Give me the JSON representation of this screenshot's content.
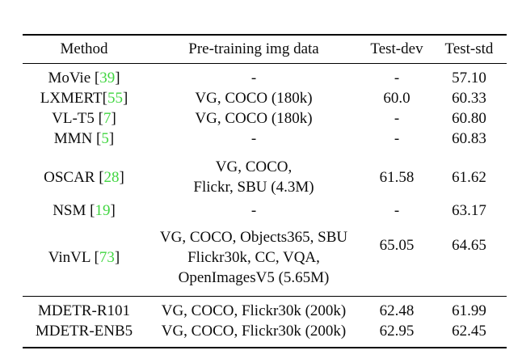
{
  "figure": {
    "background": "#ffffff",
    "text_color": "#0d0d0d",
    "rule_color": "#000000",
    "citation_color": "#41d641"
  },
  "table": {
    "columns": [
      "Method",
      "Pre-training img data",
      "Test-dev",
      "Test-std"
    ],
    "citation_open": "[",
    "citation_close": "]",
    "groups": [
      {
        "rows": [
          {
            "method": {
              "name": "MoVie ",
              "cite": "39"
            },
            "pretraining": [
              "-"
            ],
            "test_dev": "-",
            "test_std": "57.10"
          },
          {
            "method": {
              "name": "LXMERT",
              "cite": "55"
            },
            "pretraining": [
              "VG, COCO (180k)"
            ],
            "test_dev": "60.0",
            "test_std": "60.33"
          },
          {
            "method": {
              "name": "VL-T5 ",
              "cite": "7"
            },
            "pretraining": [
              "VG, COCO (180k)"
            ],
            "test_dev": "-",
            "test_std": "60.80"
          },
          {
            "method": {
              "name": "MMN ",
              "cite": "5"
            },
            "pretraining": [
              "-"
            ],
            "test_dev": "-",
            "test_std": "60.83"
          },
          {
            "method": {
              "name": "OSCAR ",
              "cite": "28"
            },
            "pretraining": [
              "VG, COCO,",
              "Flickr, SBU (4.3M)"
            ],
            "test_dev": "61.58",
            "test_std": "61.62"
          },
          {
            "method": {
              "name": "NSM ",
              "cite": "19"
            },
            "pretraining": [
              "-"
            ],
            "test_dev": "-",
            "test_std": "63.17"
          },
          {
            "method": {
              "name": "VinVL ",
              "cite": "73"
            },
            "pretraining": [
              "VG, COCO, Objects365, SBU",
              "Flickr30k, CC, VQA,",
              "OpenImagesV5 (5.65M)"
            ],
            "test_dev": "65.05",
            "test_std": "64.65"
          }
        ]
      },
      {
        "rows": [
          {
            "method": {
              "name": "MDETR-R101"
            },
            "pretraining": [
              "VG, COCO, Flickr30k (200k)"
            ],
            "test_dev": "62.48",
            "test_std": "61.99"
          },
          {
            "method": {
              "name": "MDETR-ENB5"
            },
            "pretraining": [
              "VG, COCO, Flickr30k (200k)"
            ],
            "test_dev": "62.95",
            "test_std": "62.45"
          }
        ]
      }
    ]
  }
}
